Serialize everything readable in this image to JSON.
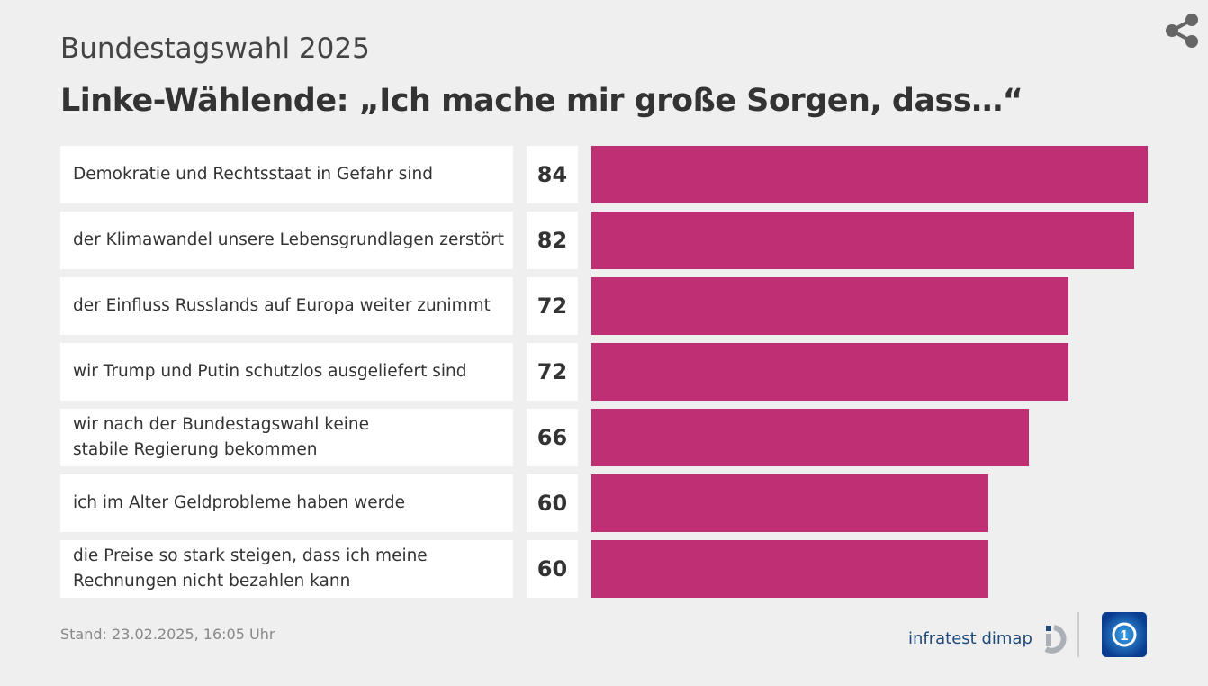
{
  "header": {
    "supertitle": "Bundestagswahl 2025",
    "title": "Linke-Wählende: „Ich mache mir große Sorgen, dass…“"
  },
  "chart_data": {
    "type": "bar",
    "orientation": "horizontal",
    "unit": "percent",
    "categories": [
      "Demokratie und Rechtsstaat in Gefahr sind",
      "der Klimawandel unsere Lebensgrundlagen zerstört",
      "der Einfluss Russlands auf Europa weiter zunimmt",
      "wir Trump und Putin schutzlos ausgeliefert sind",
      "wir nach der Bundestagswahl keine\nstabile Regierung bekommen",
      "ich im Alter Geldprobleme haben werde",
      "die Preise so stark steigen, dass ich meine\nRechnungen nicht bezahlen kann"
    ],
    "values": [
      84,
      82,
      72,
      72,
      66,
      60,
      60
    ],
    "color": "#be2f74",
    "xlim": [
      0,
      84
    ]
  },
  "footer": {
    "stand": "Stand:  23.02.2025, 16:05 Uhr",
    "source_logo": "infratest dimap",
    "broadcaster_logo": "tagesschau"
  }
}
